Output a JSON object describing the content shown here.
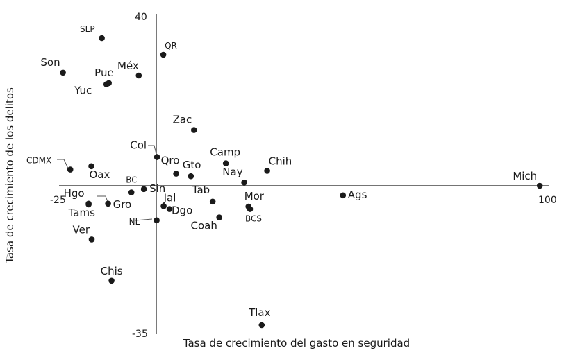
{
  "chart_data": {
    "type": "scatter",
    "xlabel": "Tasa de crecimiento del gasto en seguridad",
    "ylabel": "Tasa de crecimiento de los delitos",
    "xlim": [
      -25,
      100
    ],
    "ylim": [
      -35,
      40
    ],
    "ticks": {
      "x_min": "-25",
      "x_max": "100",
      "y_max": "40",
      "y_min": "-35"
    },
    "grid": false,
    "points": [
      {
        "label": "SLP",
        "x": -14.0,
        "y": 35.5
      },
      {
        "label": "QR",
        "x": 1.8,
        "y": 31.5
      },
      {
        "label": "Son",
        "x": -24.0,
        "y": 27.2
      },
      {
        "label": "Méx",
        "x": -4.5,
        "y": 26.5
      },
      {
        "label": "Pue",
        "x": -12.2,
        "y": 24.7
      },
      {
        "label": "Yuc",
        "x": -12.8,
        "y": 24.4
      },
      {
        "label": "Zac",
        "x": 9.7,
        "y": 13.4
      },
      {
        "label": "Col",
        "x": 0.2,
        "y": 6.9
      },
      {
        "label": "Camp",
        "x": 17.9,
        "y": 5.4
      },
      {
        "label": "CDMX",
        "x": -22.1,
        "y": 3.9
      },
      {
        "label": "Oax",
        "x": -16.7,
        "y": 4.7
      },
      {
        "label": "Qro",
        "x": 5.1,
        "y": 2.9
      },
      {
        "label": "Gto",
        "x": 8.9,
        "y": 2.3
      },
      {
        "label": "Chih",
        "x": 28.5,
        "y": 3.6
      },
      {
        "label": "Nay",
        "x": 22.6,
        "y": 0.8
      },
      {
        "label": "Mich",
        "x": 98.6,
        "y": 0.0
      },
      {
        "label": "BC",
        "x": -6.4,
        "y": -1.6
      },
      {
        "label": "Sin",
        "x": -3.2,
        "y": -0.8
      },
      {
        "label": "Hgo",
        "x": -17.4,
        "y": -4.3
      },
      {
        "label": "Gro",
        "x": -12.4,
        "y": -4.3
      },
      {
        "label": "Tams",
        "x": -17.4,
        "y": -4.5
      },
      {
        "label": "Jal",
        "x": 1.9,
        "y": -4.9
      },
      {
        "label": "Tab",
        "x": 14.5,
        "y": -3.8
      },
      {
        "label": "Ags",
        "x": 48.0,
        "y": -2.3
      },
      {
        "label": "Mor",
        "x": 23.7,
        "y": -5.0
      },
      {
        "label": "BCS",
        "x": 24.1,
        "y": -5.6
      },
      {
        "label": "NL",
        "x": 0.1,
        "y": -8.3
      },
      {
        "label": "Dgo",
        "x": 3.4,
        "y": -5.6
      },
      {
        "label": "Coah",
        "x": 16.2,
        "y": -7.6
      },
      {
        "label": "Ver",
        "x": -16.6,
        "y": -12.9
      },
      {
        "label": "Chis",
        "x": -11.5,
        "y": -22.8
      },
      {
        "label": "Tlax",
        "x": 27.1,
        "y": -33.5
      }
    ]
  }
}
